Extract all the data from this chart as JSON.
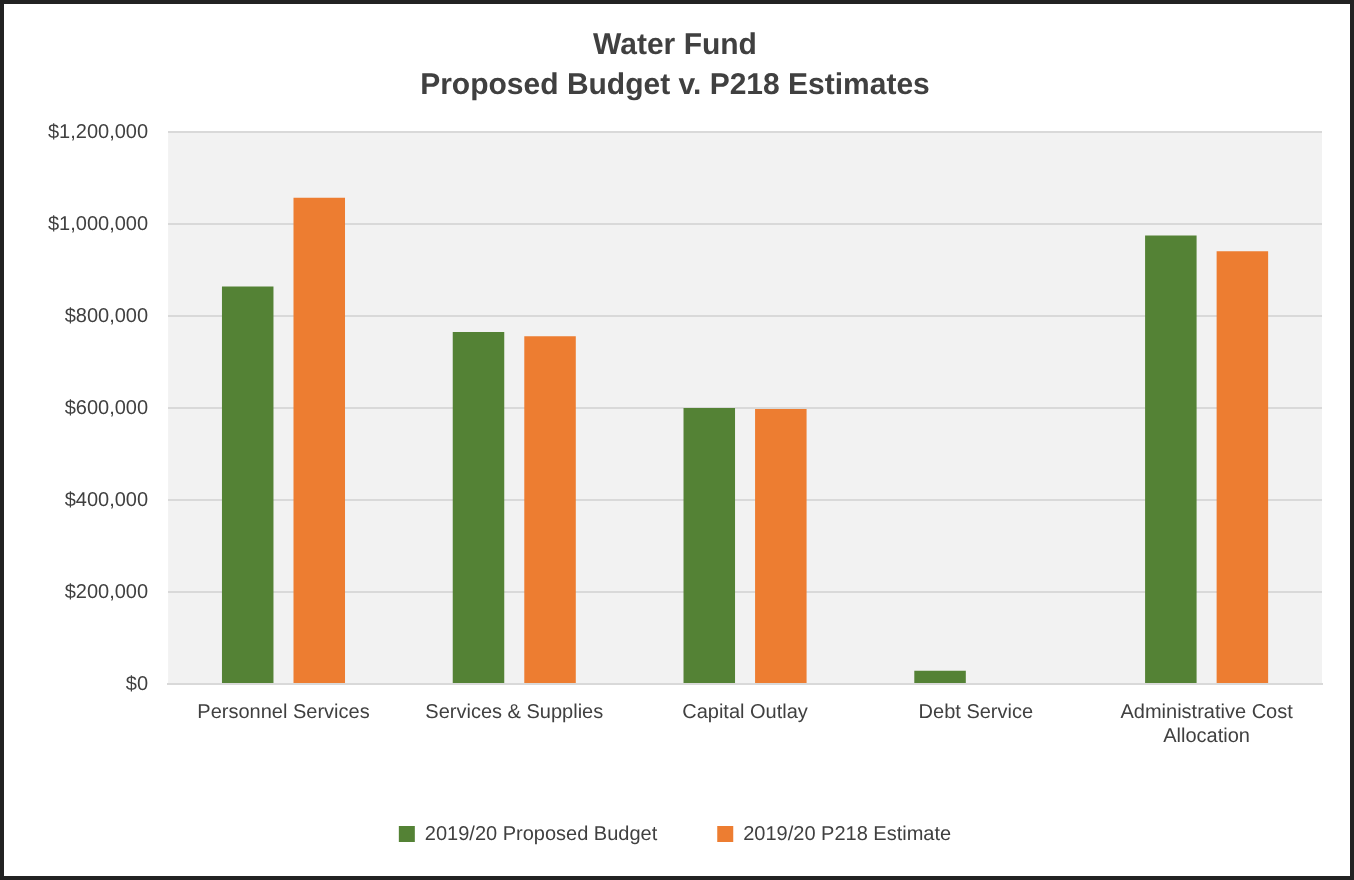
{
  "chart_data": {
    "type": "bar",
    "title": "Water Fund",
    "subtitle": "Proposed Budget v. P218 Estimates",
    "categories": [
      "Personnel Services",
      "Services & Supplies",
      "Capital Outlay",
      "Debt Service",
      "Administrative Cost Allocation"
    ],
    "series": [
      {
        "name": "2019/20 Proposed Budget",
        "color": "#548235",
        "values": [
          864000,
          765000,
          600000,
          29000,
          975000
        ]
      },
      {
        "name": "2019/20 P218 Estimate",
        "color": "#ed7d31",
        "values": [
          1057000,
          756000,
          598000,
          null,
          941000
        ]
      }
    ],
    "ylim": [
      0,
      1200000
    ],
    "yticks": [
      {
        "value": 0,
        "label": "$0"
      },
      {
        "value": 200000,
        "label": "$200,000"
      },
      {
        "value": 400000,
        "label": "$400,000"
      },
      {
        "value": 600000,
        "label": "$600,000"
      },
      {
        "value": 800000,
        "label": "$800,000"
      },
      {
        "value": 1000000,
        "label": "$1,000,000"
      },
      {
        "value": 1200000,
        "label": "$1,200,000"
      }
    ],
    "grid": "y",
    "legend": "bottom"
  }
}
